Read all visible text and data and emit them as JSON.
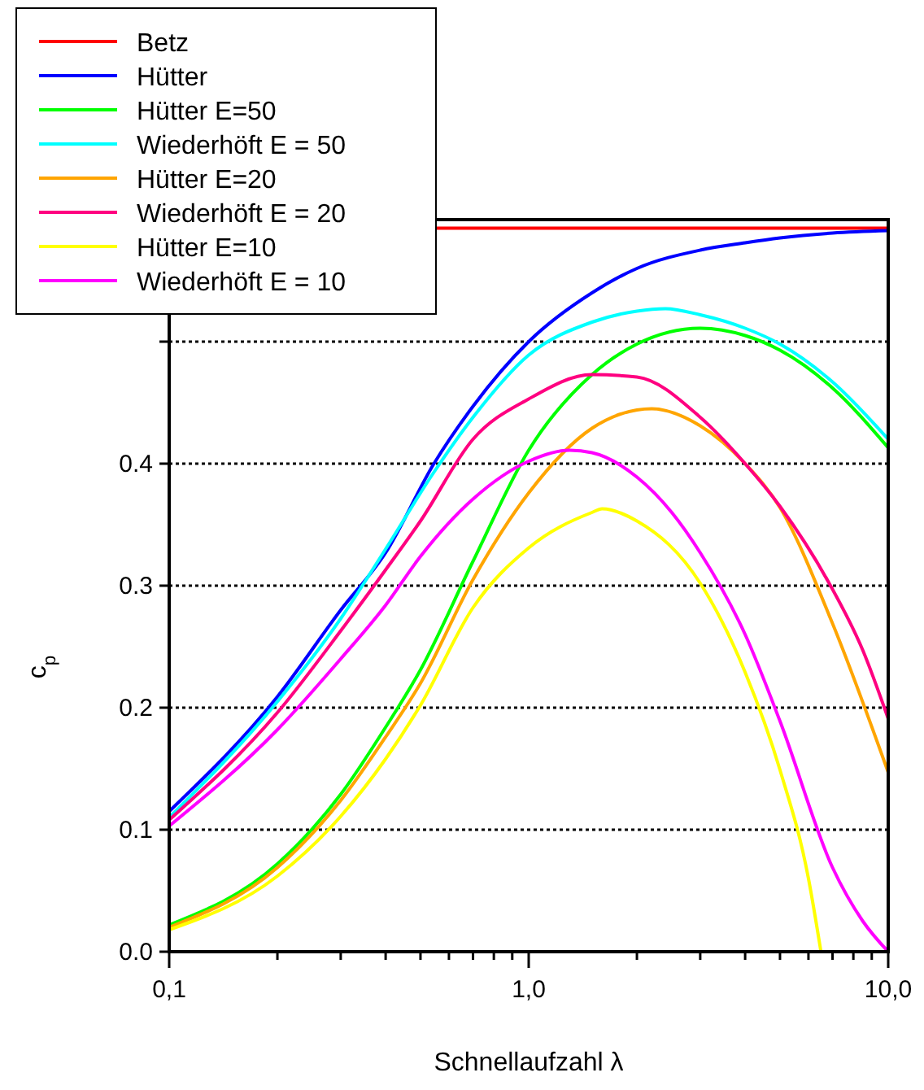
{
  "chart_data": {
    "type": "line",
    "xlabel": "Schnellaufzahl λ",
    "ylabel": "c$_{p}$",
    "log": "x",
    "xlim": [
      0.1,
      10
    ],
    "ylim": [
      0,
      0.6
    ],
    "xticks": [
      {
        "value": 0.1,
        "label": "0,1"
      },
      {
        "value": 0.2,
        "label": null
      },
      {
        "value": 0.3,
        "label": null
      },
      {
        "value": 0.4,
        "label": null
      },
      {
        "value": 0.5,
        "label": null
      },
      {
        "value": 0.6,
        "label": null
      },
      {
        "value": 0.7,
        "label": null
      },
      {
        "value": 0.8,
        "label": null
      },
      {
        "value": 0.9,
        "label": null
      },
      {
        "value": 1,
        "label": "1,0"
      },
      {
        "value": 2,
        "label": null
      },
      {
        "value": 3,
        "label": null
      },
      {
        "value": 4,
        "label": null
      },
      {
        "value": 5,
        "label": null
      },
      {
        "value": 6,
        "label": null
      },
      {
        "value": 7,
        "label": null
      },
      {
        "value": 8,
        "label": null
      },
      {
        "value": 9,
        "label": null
      },
      {
        "value": 10,
        "label": "10,0"
      }
    ],
    "yticks": [
      {
        "value": 0,
        "label": "0.0"
      },
      0.1,
      0.2,
      0.3,
      0.4,
      {
        "value": 0.5,
        "label": null
      },
      {
        "value": 0.6,
        "label": null
      }
    ],
    "grid": "y",
    "legend": "top left",
    "line_style": "solid",
    "marker": "none",
    "series": [
      {
        "name": "Betz",
        "color": "#ff0000",
        "x": [
          0.55,
          10
        ],
        "values": [
          0.593,
          0.593
        ]
      },
      {
        "name": "Hütter",
        "color": "#0000ff",
        "x": [
          0.1,
          0.2,
          0.3,
          0.4,
          0.545,
          0.7,
          1,
          1.5,
          2,
          3,
          4,
          5,
          7,
          10
        ],
        "values": [
          0.115,
          0.209,
          0.28,
          0.327,
          0.4,
          0.447,
          0.5,
          0.54,
          0.56,
          0.575,
          0.581,
          0.585,
          0.589,
          0.591
        ]
      },
      {
        "name": "Hütter E=50",
        "color": "#00ff00",
        "x": [
          0.1,
          0.2,
          0.3,
          0.4,
          0.5,
          0.7,
          1,
          1.5,
          2,
          3,
          4,
          5,
          7,
          10
        ],
        "values": [
          0.022,
          0.072,
          0.129,
          0.184,
          0.231,
          0.32,
          0.411,
          0.473,
          0.498,
          0.511,
          0.505,
          0.493,
          0.462,
          0.413
        ]
      },
      {
        "name": "Wiederhöft E = 50",
        "color": "#00ffff",
        "x": [
          0.1,
          0.2,
          0.3,
          0.4,
          0.545,
          0.7,
          1,
          1.5,
          2,
          2.4,
          3,
          4,
          5,
          7,
          10
        ],
        "values": [
          0.11,
          0.205,
          0.273,
          0.33,
          0.393,
          0.438,
          0.489,
          0.516,
          0.525,
          0.527,
          0.522,
          0.511,
          0.498,
          0.467,
          0.42
        ]
      },
      {
        "name": "Hütter E=20",
        "color": "#ffa500",
        "x": [
          0.1,
          0.2,
          0.3,
          0.4,
          0.5,
          0.7,
          1,
          1.5,
          2,
          2.2,
          3,
          4,
          5,
          7,
          10
        ],
        "values": [
          0.02,
          0.069,
          0.124,
          0.176,
          0.22,
          0.305,
          0.376,
          0.429,
          0.444,
          0.445,
          0.431,
          0.4,
          0.364,
          0.269,
          0.147
        ]
      },
      {
        "name": "Wiederhöft E = 20",
        "color": "#ff0080",
        "x": [
          0.1,
          0.2,
          0.3,
          0.4,
          0.5,
          0.7,
          1,
          1.5,
          2,
          3,
          4,
          5,
          6.85,
          8.5,
          10
        ],
        "values": [
          0.108,
          0.196,
          0.263,
          0.313,
          0.353,
          0.42,
          0.453,
          0.473,
          0.471,
          0.438,
          0.4,
          0.365,
          0.302,
          0.247,
          0.191
        ]
      },
      {
        "name": "Hütter E=10",
        "color": "#ffff00",
        "x": [
          0.1,
          0.2,
          0.3,
          0.4,
          0.5,
          0.7,
          1,
          1.5,
          1.6,
          2,
          3,
          4,
          5,
          6,
          6.5
        ],
        "values": [
          0.018,
          0.062,
          0.111,
          0.158,
          0.202,
          0.282,
          0.331,
          0.36,
          0.363,
          0.353,
          0.302,
          0.229,
          0.149,
          0.06,
          0
        ]
      },
      {
        "name": "Wiederhöft E = 10",
        "color": "#ff00ff",
        "x": [
          0.1,
          0.2,
          0.3,
          0.4,
          0.5,
          0.7,
          1,
          1.3,
          1.5,
          2,
          2.5,
          3,
          4,
          5,
          7,
          8.5,
          10
        ],
        "values": [
          0.103,
          0.182,
          0.24,
          0.284,
          0.324,
          0.371,
          0.402,
          0.411,
          0.409,
          0.389,
          0.36,
          0.327,
          0.26,
          0.189,
          0.069,
          0.025,
          0
        ]
      }
    ]
  }
}
